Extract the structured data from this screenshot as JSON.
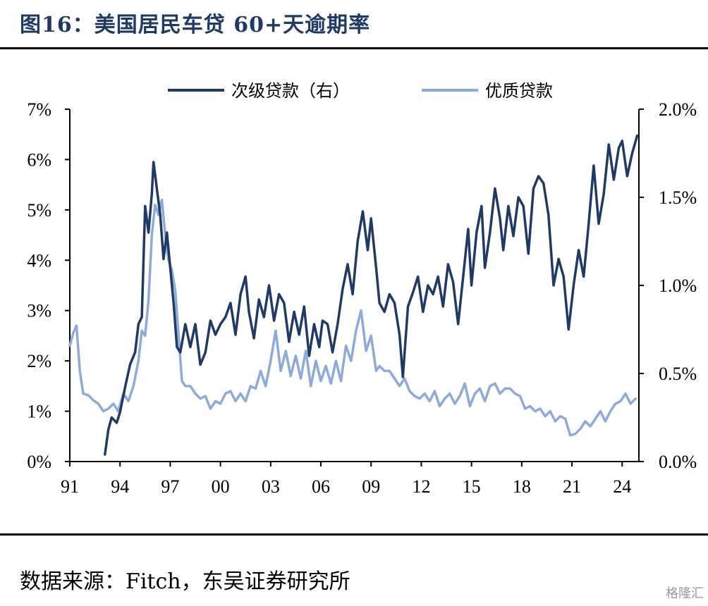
{
  "header": {
    "title": "图16：美国居民车贷 60+天逾期率"
  },
  "footer": {
    "source": "数据来源：Fitch，东吴证券研究所",
    "watermark": "格隆汇"
  },
  "chart_data": {
    "type": "line",
    "title": "图16：美国居民车贷 60+天逾期率",
    "legend_position": "top-center",
    "x_tick_labels": [
      "91",
      "94",
      "97",
      "00",
      "03",
      "06",
      "09",
      "12",
      "15",
      "18",
      "21",
      "24"
    ],
    "x_tick_years": [
      1991,
      1994,
      1997,
      2000,
      2003,
      2006,
      2009,
      2012,
      2015,
      2018,
      2021,
      2024
    ],
    "xlim": [
      1991,
      2025
    ],
    "y_left": {
      "ylim": [
        0,
        7
      ],
      "tick_labels": [
        "0%",
        "1%",
        "2%",
        "3%",
        "4%",
        "5%",
        "6%",
        "7%"
      ]
    },
    "y_right": {
      "ylim": [
        0,
        2.0
      ],
      "tick_labels": [
        "0.0%",
        "0.5%",
        "1.0%",
        "1.5%",
        "2.0%"
      ]
    },
    "series": [
      {
        "name": "次级贷款（右）",
        "axis": "right",
        "color": "#1f3a66",
        "points": [
          [
            1993.1,
            0.04
          ],
          [
            1993.3,
            0.18
          ],
          [
            1993.5,
            0.25
          ],
          [
            1993.8,
            0.22
          ],
          [
            1994.0,
            0.28
          ],
          [
            1994.3,
            0.42
          ],
          [
            1994.6,
            0.55
          ],
          [
            1994.9,
            0.62
          ],
          [
            1995.1,
            0.78
          ],
          [
            1995.3,
            0.82
          ],
          [
            1995.5,
            1.45
          ],
          [
            1995.7,
            1.3
          ],
          [
            1995.9,
            1.52
          ],
          [
            1996.0,
            1.7
          ],
          [
            1996.2,
            1.55
          ],
          [
            1996.4,
            1.4
          ],
          [
            1996.6,
            1.15
          ],
          [
            1996.8,
            1.3
          ],
          [
            1997.0,
            1.1
          ],
          [
            1997.2,
            0.9
          ],
          [
            1997.4,
            0.65
          ],
          [
            1997.6,
            0.62
          ],
          [
            1997.9,
            0.78
          ],
          [
            1998.2,
            0.65
          ],
          [
            1998.5,
            0.78
          ],
          [
            1998.8,
            0.55
          ],
          [
            1999.1,
            0.62
          ],
          [
            1999.4,
            0.8
          ],
          [
            1999.7,
            0.72
          ],
          [
            2000.0,
            0.78
          ],
          [
            2000.3,
            0.82
          ],
          [
            2000.6,
            0.9
          ],
          [
            2000.9,
            0.72
          ],
          [
            2001.2,
            0.95
          ],
          [
            2001.5,
            1.05
          ],
          [
            2001.7,
            0.85
          ],
          [
            2002.0,
            0.7
          ],
          [
            2002.3,
            0.92
          ],
          [
            2002.6,
            0.82
          ],
          [
            2002.9,
            1.0
          ],
          [
            2003.2,
            0.8
          ],
          [
            2003.5,
            0.95
          ],
          [
            2003.8,
            0.9
          ],
          [
            2004.1,
            0.68
          ],
          [
            2004.4,
            0.85
          ],
          [
            2004.7,
            0.72
          ],
          [
            2005.0,
            0.88
          ],
          [
            2005.3,
            0.6
          ],
          [
            2005.6,
            0.78
          ],
          [
            2005.9,
            0.65
          ],
          [
            2006.1,
            0.8
          ],
          [
            2006.4,
            0.78
          ],
          [
            2006.7,
            0.62
          ],
          [
            2007.0,
            0.78
          ],
          [
            2007.3,
            0.98
          ],
          [
            2007.6,
            1.12
          ],
          [
            2007.9,
            0.95
          ],
          [
            2008.2,
            1.25
          ],
          [
            2008.5,
            1.42
          ],
          [
            2008.8,
            1.2
          ],
          [
            2009.0,
            1.38
          ],
          [
            2009.3,
            1.1
          ],
          [
            2009.5,
            0.9
          ],
          [
            2009.8,
            0.85
          ],
          [
            2010.1,
            0.95
          ],
          [
            2010.4,
            0.9
          ],
          [
            2010.7,
            0.72
          ],
          [
            2010.9,
            0.48
          ],
          [
            2011.2,
            0.88
          ],
          [
            2011.5,
            0.96
          ],
          [
            2011.8,
            1.05
          ],
          [
            2012.1,
            0.85
          ],
          [
            2012.4,
            1.0
          ],
          [
            2012.7,
            0.95
          ],
          [
            2013.0,
            1.05
          ],
          [
            2013.3,
            0.88
          ],
          [
            2013.6,
            1.12
          ],
          [
            2013.9,
            1.02
          ],
          [
            2014.2,
            0.78
          ],
          [
            2014.5,
            1.05
          ],
          [
            2014.8,
            1.32
          ],
          [
            2015.0,
            1.0
          ],
          [
            2015.3,
            1.3
          ],
          [
            2015.6,
            1.45
          ],
          [
            2015.8,
            1.1
          ],
          [
            2016.1,
            1.3
          ],
          [
            2016.4,
            1.55
          ],
          [
            2016.7,
            1.38
          ],
          [
            2016.9,
            1.2
          ],
          [
            2017.2,
            1.45
          ],
          [
            2017.5,
            1.28
          ],
          [
            2017.8,
            1.5
          ],
          [
            2018.1,
            1.45
          ],
          [
            2018.4,
            1.18
          ],
          [
            2018.7,
            1.55
          ],
          [
            2019.0,
            1.62
          ],
          [
            2019.3,
            1.58
          ],
          [
            2019.6,
            1.4
          ],
          [
            2019.9,
            1.0
          ],
          [
            2020.2,
            1.15
          ],
          [
            2020.5,
            1.05
          ],
          [
            2020.8,
            0.75
          ],
          [
            2021.1,
            1.0
          ],
          [
            2021.4,
            1.2
          ],
          [
            2021.7,
            1.05
          ],
          [
            2022.0,
            1.35
          ],
          [
            2022.3,
            1.68
          ],
          [
            2022.6,
            1.35
          ],
          [
            2022.9,
            1.52
          ],
          [
            2023.2,
            1.8
          ],
          [
            2023.5,
            1.6
          ],
          [
            2023.8,
            1.78
          ],
          [
            2024.0,
            1.82
          ],
          [
            2024.3,
            1.62
          ],
          [
            2024.6,
            1.75
          ],
          [
            2024.9,
            1.85
          ]
        ]
      },
      {
        "name": "优质贷款",
        "axis": "left",
        "color": "#8eaadb",
        "points": [
          [
            1991.0,
            2.3
          ],
          [
            1991.2,
            2.55
          ],
          [
            1991.4,
            2.7
          ],
          [
            1991.6,
            1.8
          ],
          [
            1991.8,
            1.35
          ],
          [
            1992.1,
            1.32
          ],
          [
            1992.4,
            1.22
          ],
          [
            1992.7,
            1.15
          ],
          [
            1993.0,
            1.0
          ],
          [
            1993.3,
            1.05
          ],
          [
            1993.6,
            1.15
          ],
          [
            1993.9,
            1.0
          ],
          [
            1994.2,
            1.35
          ],
          [
            1994.5,
            1.2
          ],
          [
            1994.8,
            1.5
          ],
          [
            1995.1,
            2.0
          ],
          [
            1995.3,
            2.6
          ],
          [
            1995.5,
            2.5
          ],
          [
            1995.7,
            3.2
          ],
          [
            1995.9,
            4.5
          ],
          [
            1996.1,
            5.1
          ],
          [
            1996.3,
            4.9
          ],
          [
            1996.5,
            5.2
          ],
          [
            1996.7,
            4.5
          ],
          [
            1996.9,
            4.0
          ],
          [
            1997.1,
            3.8
          ],
          [
            1997.3,
            3.4
          ],
          [
            1997.5,
            2.5
          ],
          [
            1997.7,
            1.6
          ],
          [
            1997.9,
            1.5
          ],
          [
            1998.2,
            1.5
          ],
          [
            1998.5,
            1.35
          ],
          [
            1998.8,
            1.25
          ],
          [
            1999.1,
            1.3
          ],
          [
            1999.4,
            1.05
          ],
          [
            1999.7,
            1.2
          ],
          [
            2000.0,
            1.15
          ],
          [
            2000.3,
            1.35
          ],
          [
            2000.6,
            1.4
          ],
          [
            2000.9,
            1.2
          ],
          [
            2001.2,
            1.35
          ],
          [
            2001.5,
            1.2
          ],
          [
            2001.8,
            1.5
          ],
          [
            2002.1,
            1.45
          ],
          [
            2002.4,
            1.8
          ],
          [
            2002.7,
            1.5
          ],
          [
            2003.0,
            2.0
          ],
          [
            2003.3,
            2.6
          ],
          [
            2003.6,
            1.8
          ],
          [
            2003.9,
            2.2
          ],
          [
            2004.2,
            1.7
          ],
          [
            2004.5,
            2.1
          ],
          [
            2004.8,
            1.65
          ],
          [
            2005.1,
            2.2
          ],
          [
            2005.4,
            1.5
          ],
          [
            2005.7,
            2.0
          ],
          [
            2006.0,
            1.6
          ],
          [
            2006.3,
            1.9
          ],
          [
            2006.6,
            1.55
          ],
          [
            2006.9,
            2.0
          ],
          [
            2007.2,
            1.6
          ],
          [
            2007.5,
            2.3
          ],
          [
            2007.8,
            2.0
          ],
          [
            2008.1,
            2.6
          ],
          [
            2008.4,
            3.0
          ],
          [
            2008.7,
            2.2
          ],
          [
            2009.0,
            2.5
          ],
          [
            2009.3,
            1.8
          ],
          [
            2009.5,
            1.9
          ],
          [
            2009.8,
            1.8
          ],
          [
            2010.1,
            1.8
          ],
          [
            2010.4,
            1.65
          ],
          [
            2010.7,
            1.5
          ],
          [
            2011.0,
            1.65
          ],
          [
            2011.3,
            1.4
          ],
          [
            2011.6,
            1.3
          ],
          [
            2011.9,
            1.25
          ],
          [
            2012.2,
            1.35
          ],
          [
            2012.5,
            1.2
          ],
          [
            2012.8,
            1.4
          ],
          [
            2013.1,
            1.1
          ],
          [
            2013.4,
            1.25
          ],
          [
            2013.7,
            1.35
          ],
          [
            2014.0,
            1.15
          ],
          [
            2014.3,
            1.3
          ],
          [
            2014.6,
            1.55
          ],
          [
            2014.9,
            1.1
          ],
          [
            2015.2,
            1.35
          ],
          [
            2015.5,
            1.45
          ],
          [
            2015.8,
            1.2
          ],
          [
            2016.1,
            1.5
          ],
          [
            2016.4,
            1.55
          ],
          [
            2016.7,
            1.35
          ],
          [
            2017.0,
            1.45
          ],
          [
            2017.3,
            1.45
          ],
          [
            2017.6,
            1.35
          ],
          [
            2017.9,
            1.3
          ],
          [
            2018.2,
            1.05
          ],
          [
            2018.5,
            1.1
          ],
          [
            2018.8,
            1.0
          ],
          [
            2019.1,
            1.05
          ],
          [
            2019.4,
            0.9
          ],
          [
            2019.7,
            1.0
          ],
          [
            2020.0,
            0.8
          ],
          [
            2020.3,
            0.9
          ],
          [
            2020.6,
            0.85
          ],
          [
            2020.9,
            0.52
          ],
          [
            2021.2,
            0.55
          ],
          [
            2021.5,
            0.65
          ],
          [
            2021.8,
            0.8
          ],
          [
            2022.1,
            0.7
          ],
          [
            2022.4,
            0.85
          ],
          [
            2022.7,
            1.0
          ],
          [
            2023.0,
            0.8
          ],
          [
            2023.3,
            1.0
          ],
          [
            2023.6,
            1.15
          ],
          [
            2023.9,
            1.2
          ],
          [
            2024.2,
            1.35
          ],
          [
            2024.5,
            1.15
          ],
          [
            2024.8,
            1.25
          ]
        ]
      }
    ]
  }
}
